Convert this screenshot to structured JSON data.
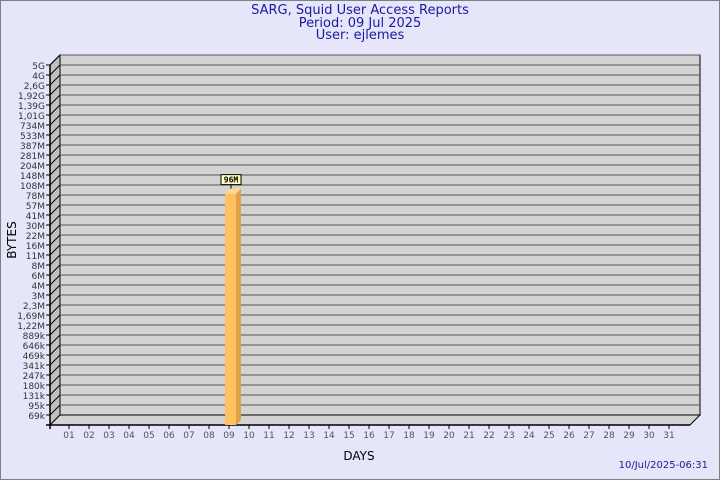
{
  "chart_data": {
    "type": "bar",
    "title": "SARG, Squid User Access Reports",
    "subtitle": [
      "Period: 09 Jul 2025",
      "User: ejlemes"
    ],
    "xlabel": "DAYS",
    "ylabel": "BYTES",
    "yscale": "log",
    "y_ticks": [
      "5G",
      "4G",
      "2,6G",
      "1,92G",
      "1,39G",
      "1,01G",
      "734M",
      "533M",
      "387M",
      "281M",
      "204M",
      "148M",
      "108M",
      "78M",
      "57M",
      "41M",
      "30M",
      "22M",
      "16M",
      "11M",
      "8M",
      "6M",
      "4M",
      "3M",
      "2,3M",
      "1,69M",
      "1,22M",
      "889k",
      "646k",
      "469k",
      "341k",
      "247k",
      "180k",
      "131k",
      "95k",
      "69k"
    ],
    "categories": [
      "01",
      "02",
      "03",
      "04",
      "05",
      "06",
      "07",
      "08",
      "09",
      "10",
      "11",
      "12",
      "13",
      "14",
      "15",
      "16",
      "17",
      "18",
      "19",
      "20",
      "21",
      "22",
      "23",
      "24",
      "25",
      "26",
      "27",
      "28",
      "29",
      "30",
      "31"
    ],
    "values": [
      0,
      0,
      0,
      0,
      0,
      0,
      0,
      0,
      96000000,
      0,
      0,
      0,
      0,
      0,
      0,
      0,
      0,
      0,
      0,
      0,
      0,
      0,
      0,
      0,
      0,
      0,
      0,
      0,
      0,
      0,
      0
    ],
    "data_labels": {
      "09": "96M"
    },
    "grid": true,
    "colors": {
      "bar": "#ffc060",
      "bar_side": "#e0a048",
      "wall": "#d3d3d3",
      "side_wall": "#c0c0c0",
      "title": "#1a1aa0"
    }
  },
  "footer": {
    "timestamp": "10/Jul/2025-06:31"
  }
}
